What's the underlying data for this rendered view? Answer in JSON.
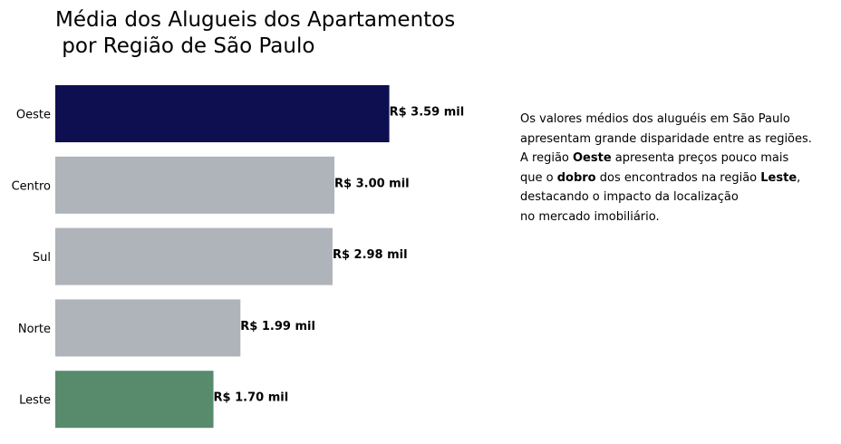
{
  "chart_data": {
    "type": "bar",
    "orientation": "horizontal",
    "title_line1": "Média dos Alugueis dos Apartamentos",
    "title_line2": " por Região de São Paulo",
    "categories": [
      "Oeste",
      "Centro",
      "Sul",
      "Norte",
      "Leste"
    ],
    "values": [
      3.59,
      3.0,
      2.98,
      1.99,
      1.7
    ],
    "data_labels": [
      "R$ 3.59 mil",
      "R$ 3.00 mil",
      "R$ 2.98 mil",
      "R$ 1.99 mil",
      "R$ 1.70 mil"
    ],
    "unit": "R$ mil",
    "xlim": [
      0,
      4.5
    ],
    "colors": [
      "#0d0f50",
      "#afb3ba",
      "#afb3ba",
      "#afb3ba",
      "#578b6b"
    ],
    "grid": false,
    "xlabel": "",
    "ylabel": ""
  },
  "annotation": {
    "line1": "Os valores médios dos aluguéis em São Paulo",
    "line2": "apresentam grande disparidade entre as regiões.",
    "line3_prefix": "A região ",
    "line3_bold": "Oeste",
    "line3_suffix": " apresenta preços pouco mais",
    "line4_prefix": "que o ",
    "line4_bold1": "dobro",
    "line4_middle": " dos encontrados na região ",
    "line4_bold2": "Leste",
    "line4_suffix": ",",
    "line5": "destacando o impacto da localização",
    "line6": "no mercado imobiliário."
  }
}
